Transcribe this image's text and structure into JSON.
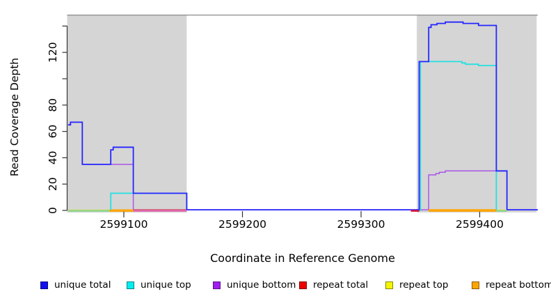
{
  "figure": {
    "xlabel": "Coordinate in Reference Genome",
    "ylabel": "Read Coverage Depth"
  },
  "chart_data": {
    "type": "line",
    "subtype": "step-coverage",
    "xlabel": "Coordinate in Reference Genome",
    "ylabel": "Read Coverage Depth",
    "x_range": [
      2599052,
      2599449
    ],
    "y_range": [
      0,
      148
    ],
    "grid": false,
    "x_ticks": [
      {
        "value": 2599100,
        "label": "2599100"
      },
      {
        "value": 2599200,
        "label": "2599200"
      },
      {
        "value": 2599300,
        "label": "2599300"
      },
      {
        "value": 2599400,
        "label": "2599400"
      }
    ],
    "y_ticks": [
      {
        "value": 0,
        "label": "0"
      },
      {
        "value": 20,
        "label": "20"
      },
      {
        "value": 40,
        "label": "40"
      },
      {
        "value": 60,
        "label": "60"
      },
      {
        "value": 80,
        "label": "80"
      },
      {
        "value": 100,
        "label": ""
      },
      {
        "value": 120,
        "label": "120"
      },
      {
        "value": 140,
        "label": ""
      }
    ],
    "repeat_regions": [
      {
        "from": 2599052,
        "to": 2599153,
        "fill": "#d5d5d5"
      },
      {
        "from": 2599347,
        "to": 2599448,
        "fill": "#d5d5d5"
      }
    ],
    "reference_line": {
      "value": 148.6,
      "color": "#8a8a8a"
    },
    "series": [
      {
        "key": "unique_bottom",
        "name": "unique bottom",
        "color": "#A855E8",
        "width": 1.5,
        "segments": [
          [
            [
              2599053,
              65
            ],
            [
              2599055,
              67
            ],
            [
              2599065,
              35
            ],
            [
              2599108,
              0.5
            ],
            [
              2599357,
              27
            ],
            [
              2599363,
              28
            ],
            [
              2599366,
              29
            ],
            [
              2599371,
              30
            ],
            [
              2599423,
              0.5
            ],
            [
              2599449,
              0.5
            ]
          ]
        ]
      },
      {
        "key": "repeat_total",
        "name": "repeat total",
        "color": "#E03030",
        "width": 1.5,
        "segments": [
          [
            [
              2599108,
              0.4
            ],
            [
              2599153,
              0.4
            ]
          ],
          [
            [
              2599342,
              0.4
            ],
            [
              2599349,
              0.4
            ]
          ]
        ]
      },
      {
        "key": "repeat_top",
        "name": "repeat top",
        "color": "#F0F000",
        "width": 1.5,
        "segments": [
          [
            [
              2599053,
              0.2
            ],
            [
              2599088,
              0.2
            ]
          ],
          [
            [
              2599414,
              0.2
            ],
            [
              2599423,
              0.2
            ]
          ]
        ]
      },
      {
        "key": "repeat_bottom",
        "name": "repeat bottom",
        "color": "#FFA500",
        "width": 1.8,
        "segments": [
          [
            [
              2599088,
              0.3
            ],
            [
              2599108,
              0.3
            ]
          ],
          [
            [
              2599357,
              0.5
            ],
            [
              2599414,
              0.5
            ]
          ]
        ]
      },
      {
        "key": "unique_top",
        "name": "unique top",
        "color": "#25E0E0",
        "width": 1.8,
        "segments": [
          [
            [
              2599088,
              0
            ],
            [
              2599089,
              13
            ],
            [
              2599153,
              0.5
            ]
          ],
          [
            [
              2599349,
              0
            ],
            [
              2599350,
              113
            ],
            [
              2599385,
              112
            ],
            [
              2599388,
              111
            ],
            [
              2599399,
              110
            ],
            [
              2599414,
              0
            ]
          ]
        ]
      },
      {
        "key": "unique_total",
        "name": "unique total",
        "color": "#2525FF",
        "width": 1.8,
        "segments": [
          [
            [
              2599053,
              65
            ],
            [
              2599055,
              67
            ],
            [
              2599065,
              35
            ],
            [
              2599089,
              46
            ],
            [
              2599091,
              48
            ],
            [
              2599108,
              13
            ],
            [
              2599153,
              0.5
            ],
            [
              2599349,
              113
            ],
            [
              2599357,
              139
            ],
            [
              2599359,
              141
            ],
            [
              2599364,
              142
            ],
            [
              2599371,
              143
            ],
            [
              2599386,
              142
            ],
            [
              2599399,
              140.5
            ],
            [
              2599414,
              30
            ],
            [
              2599423,
              0.5
            ],
            [
              2599449,
              0.5
            ]
          ]
        ]
      }
    ],
    "baseline_overlap_segments": [
      {
        "from": 2599053,
        "to": 2599088,
        "color": "#8fd48f"
      },
      {
        "from": 2599088,
        "to": 2599108,
        "color": "#FFA500"
      },
      {
        "from": 2599108,
        "to": 2599153,
        "color": "#e06ab4"
      },
      {
        "from": 2599342,
        "to": 2599349,
        "color": "#DC143C"
      },
      {
        "from": 2599357,
        "to": 2599414,
        "color": "#FFA500"
      },
      {
        "from": 2599414,
        "to": 2599423,
        "color": "#8fd48f"
      }
    ]
  },
  "legend": {
    "items": [
      {
        "key": "unique_total",
        "label": "unique total",
        "color": "#1010EE"
      },
      {
        "key": "unique_top",
        "label": "unique top",
        "color": "#00EEEE"
      },
      {
        "key": "unique_bottom",
        "label": "unique bottom",
        "color": "#A020F0"
      },
      {
        "key": "repeat_total",
        "label": "repeat total",
        "color": "#EE0000"
      },
      {
        "key": "repeat_top",
        "label": "repeat top",
        "color": "#F5F500"
      },
      {
        "key": "repeat_bottom",
        "label": "repeat bottom",
        "color": "#FFA500"
      }
    ]
  }
}
